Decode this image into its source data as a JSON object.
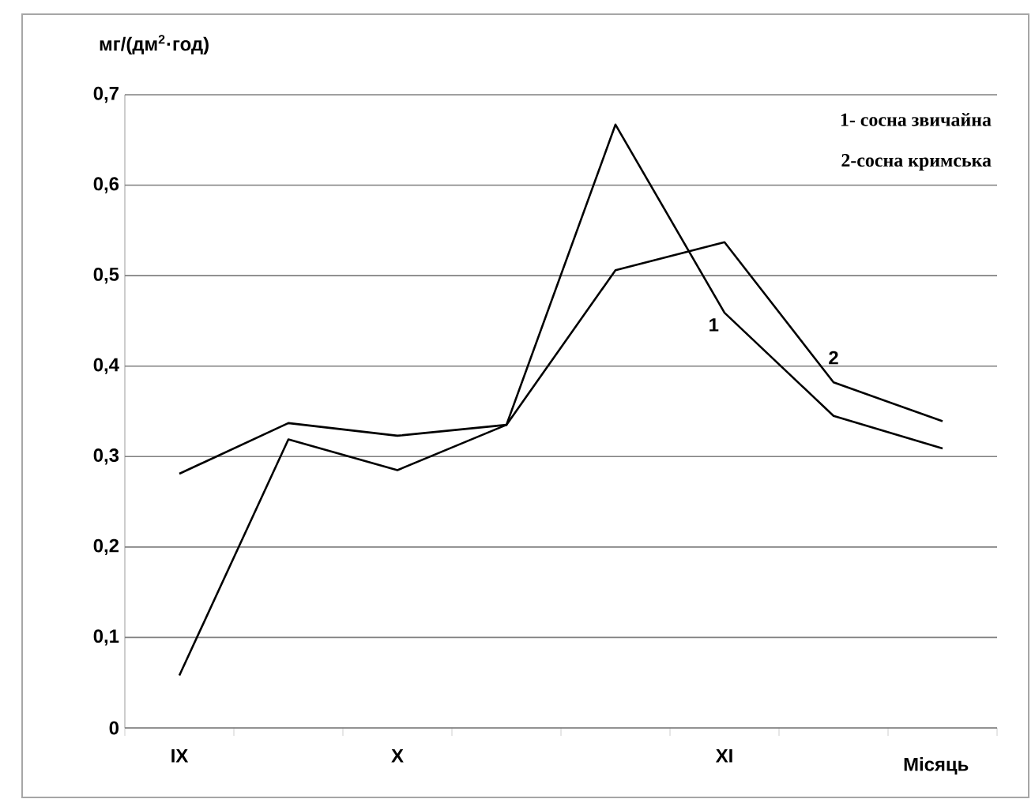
{
  "chart_data": {
    "type": "line",
    "ylabel": "мг/(дм$^{2}$·год)",
    "xlabel": "Місяць",
    "categories": [
      "IX",
      null,
      "X",
      null,
      null,
      "XI",
      null,
      null
    ],
    "series": [
      {
        "name": "1",
        "color": "#000000",
        "values": [
          0.058,
          0.319,
          0.285,
          0.335,
          0.667,
          0.459,
          0.345,
          0.309
        ]
      },
      {
        "name": "2",
        "color": "#000000",
        "values": [
          0.281,
          0.337,
          0.323,
          0.335,
          0.506,
          0.537,
          0.382,
          0.339
        ]
      }
    ],
    "ylim": [
      0,
      0.7
    ],
    "yticks": [
      0,
      {
        "value": 0.1,
        "label": "0,1"
      },
      {
        "value": 0.2,
        "label": "0,2"
      },
      {
        "value": 0.3,
        "label": "0,3"
      },
      {
        "value": 0.4,
        "label": "0,4"
      },
      {
        "value": 0.5,
        "label": "0,5"
      },
      {
        "value": 0.6,
        "label": "0,6"
      },
      {
        "value": 0.7,
        "label": "0,7"
      }
    ],
    "grid": "y",
    "marker": "none",
    "line_style": "solid",
    "annotations": [
      "1- сосна звичайна",
      "2-сосна кримська"
    ]
  }
}
